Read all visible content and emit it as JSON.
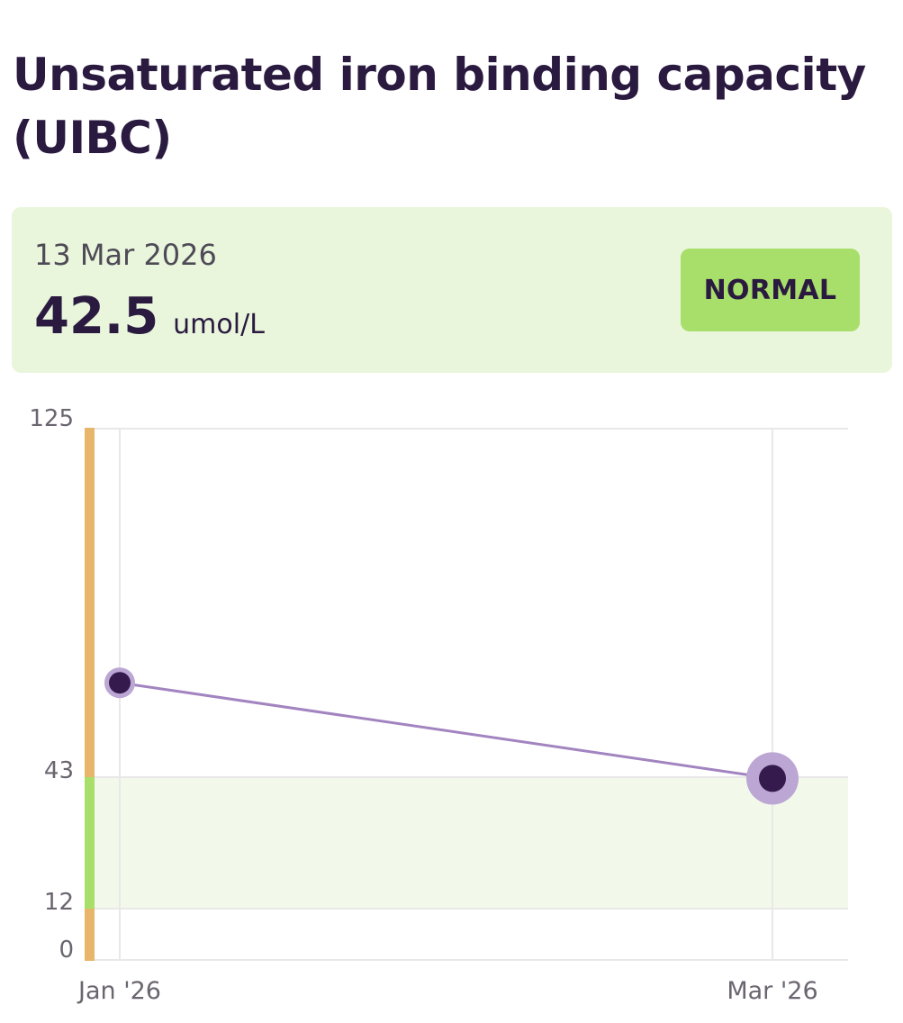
{
  "title": "Unsaturated iron binding capacity (UIBC)",
  "latest": {
    "date": "13 Mar 2026",
    "value": "42.5",
    "unit": "umol/L",
    "status": "NORMAL"
  },
  "colors": {
    "title_text": "#2a1a40",
    "card_background": "#e9f6dc",
    "badge_background": "#a8df6a",
    "normal_band": "#f3f9ea",
    "normal_range_bar": "#a8df6a",
    "out_of_range_bar": "#e8b66a",
    "line": "#a284c0",
    "point_fill": "#341a4d",
    "point_halo": "#bba6d4",
    "gridline": "#e8e8e8",
    "tick_text": "#6b6570"
  },
  "chart_data": {
    "type": "line",
    "ylim": [
      0,
      125
    ],
    "y_ticks": [
      "125",
      "43",
      "12",
      "0"
    ],
    "y_tick_values": [
      125,
      43,
      12,
      0
    ],
    "x_tick_labels": [
      "Jan '26",
      "Mar '26"
    ],
    "normal_range": [
      12,
      43
    ],
    "grid": true,
    "points": [
      {
        "x": "Jan '26",
        "y": 65
      },
      {
        "x": "Mar '26",
        "y": 42.5
      }
    ]
  }
}
